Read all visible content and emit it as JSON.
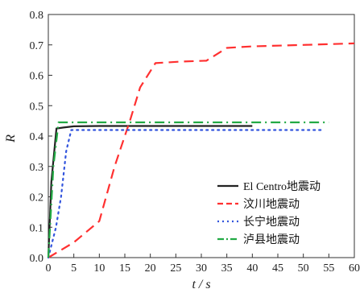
{
  "chart_data": {
    "type": "line",
    "xlabel": "t / s",
    "ylabel": "R",
    "xlim": [
      0,
      60
    ],
    "ylim": [
      0,
      0.8
    ],
    "xticks": [
      "0",
      "5",
      "10",
      "15",
      "20",
      "25",
      "30",
      "35",
      "40",
      "45",
      "50",
      "55",
      "60"
    ],
    "yticks": [
      "0.0",
      "0.1",
      "0.2",
      "0.3",
      "0.4",
      "0.5",
      "0.6",
      "0.7",
      "0.8"
    ],
    "legend_position": "bottom-right",
    "series": [
      {
        "name": "El Centro地震动",
        "color": "#222222",
        "dash": "solid",
        "x": [
          0,
          0.6,
          1.6,
          3,
          5,
          10,
          20,
          30,
          40
        ],
        "y": [
          0,
          0.25,
          0.425,
          0.428,
          0.432,
          0.433,
          0.433,
          0.433,
          0.433
        ]
      },
      {
        "name": "汶川地震动",
        "color": "#ff3030",
        "dash": "dashed",
        "x": [
          0,
          5,
          10,
          13,
          16,
          18,
          21,
          26,
          31,
          35,
          40,
          50,
          60
        ],
        "y": [
          0,
          0.05,
          0.12,
          0.3,
          0.45,
          0.56,
          0.64,
          0.645,
          0.648,
          0.69,
          0.695,
          0.7,
          0.705
        ]
      },
      {
        "name": "长宁地震动",
        "color": "#3355dd",
        "dash": "dotted",
        "x": [
          0,
          1.5,
          2.5,
          3.5,
          4.5,
          6,
          10,
          20,
          30,
          40,
          50,
          54
        ],
        "y": [
          0,
          0.1,
          0.2,
          0.35,
          0.42,
          0.42,
          0.42,
          0.42,
          0.42,
          0.42,
          0.42,
          0.42
        ]
      },
      {
        "name": "泸县地震动",
        "color": "#22aa44",
        "dash": "dashdot",
        "x": [
          0,
          1,
          2,
          3,
          5,
          10,
          20,
          30,
          40,
          50,
          55
        ],
        "y": [
          0,
          0.3,
          0.445,
          0.445,
          0.445,
          0.445,
          0.445,
          0.445,
          0.445,
          0.445,
          0.445
        ]
      }
    ]
  }
}
